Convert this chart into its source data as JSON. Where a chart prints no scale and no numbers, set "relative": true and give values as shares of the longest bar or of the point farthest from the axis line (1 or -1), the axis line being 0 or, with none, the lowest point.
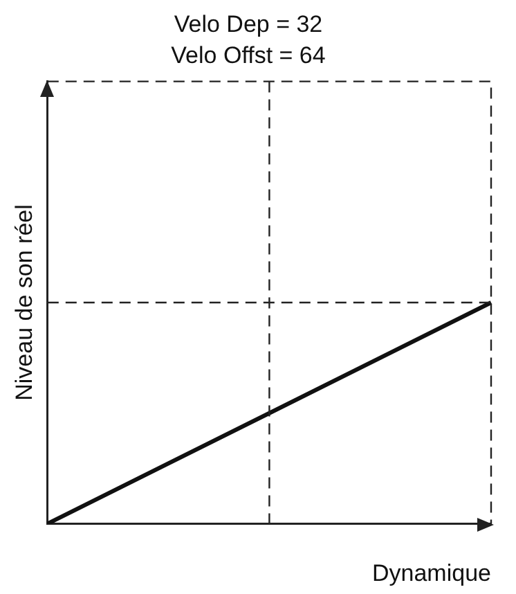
{
  "chart_data": {
    "type": "line",
    "title": "Velo Dep = 32",
    "subtitle": "Velo Offst = 64",
    "xlabel": "Dynamique",
    "ylabel": "Niveau de son réel",
    "relative": true,
    "categories": [
      null,
      null,
      null
    ],
    "series": [
      {
        "color": "#111111",
        "values": [
          0,
          0.5,
          1
        ]
      }
    ],
    "grid": false,
    "legend": false,
    "marker": "none",
    "line_style": "solid"
  }
}
